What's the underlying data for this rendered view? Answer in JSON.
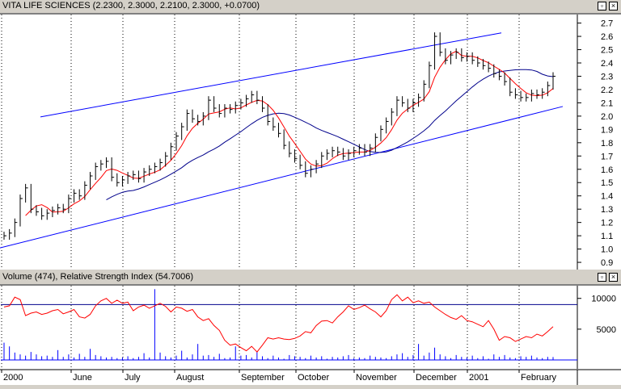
{
  "price_pane": {
    "title": "VITA LIFE SCIENCES (2.2300, 2.3000, 2.2100, 2.3000, +0.0700)",
    "controls": [
      "restore-icon",
      "close-icon"
    ]
  },
  "indicator_pane": {
    "title": "Volume (474), Relative Strength Index (54.7006)",
    "controls": [
      "restore-icon",
      "close-icon"
    ]
  },
  "x_axis": {
    "labels": [
      "2000",
      "June",
      "July",
      "August",
      "September",
      "October",
      "November",
      "December",
      "2001",
      "February"
    ]
  },
  "chart_data": [
    {
      "type": "line",
      "title": "VITA LIFE SCIENCES (2.2300, 2.3000, 2.2100, 2.3000, +0.0700)",
      "y_ticks": [
        0.9,
        1.0,
        1.1,
        1.2,
        1.3,
        1.4,
        1.5,
        1.6,
        1.7,
        1.8,
        1.9,
        2.0,
        2.1,
        2.2,
        2.3,
        2.4,
        2.5,
        2.6,
        2.7
      ],
      "ylim": [
        0.87,
        2.74
      ],
      "x_labels": [
        "2000",
        "June",
        "July",
        "August",
        "September",
        "October",
        "November",
        "December",
        "2001",
        "February"
      ],
      "grid": "vertical dashed at month starts",
      "last_bar": {
        "open": 2.23,
        "high": 2.3,
        "low": 2.21,
        "close": 2.3,
        "change": 0.07
      },
      "price_close": [
        1.1,
        1.12,
        1.2,
        1.38,
        1.46,
        1.3,
        1.28,
        1.25,
        1.27,
        1.29,
        1.31,
        1.3,
        1.38,
        1.42,
        1.4,
        1.48,
        1.55,
        1.62,
        1.64,
        1.66,
        1.54,
        1.5,
        1.52,
        1.55,
        1.56,
        1.53,
        1.58,
        1.6,
        1.62,
        1.65,
        1.7,
        1.77,
        1.85,
        1.92,
        2.02,
        1.98,
        1.96,
        2.0,
        2.12,
        2.06,
        2.02,
        2.06,
        2.05,
        2.08,
        2.1,
        2.13,
        2.16,
        2.12,
        2.06,
        1.96,
        1.92,
        1.87,
        1.78,
        1.72,
        1.68,
        1.63,
        1.57,
        1.6,
        1.64,
        1.7,
        1.72,
        1.74,
        1.73,
        1.7,
        1.72,
        1.74,
        1.76,
        1.73,
        1.76,
        1.84,
        1.9,
        1.96,
        2.03,
        2.12,
        2.1,
        2.06,
        2.1,
        2.14,
        2.24,
        2.38,
        2.6,
        2.48,
        2.42,
        2.46,
        2.48,
        2.44,
        2.45,
        2.42,
        2.4,
        2.38,
        2.36,
        2.32,
        2.3,
        2.26,
        2.18,
        2.16,
        2.14,
        2.14,
        2.17,
        2.16,
        2.18,
        2.23,
        2.3
      ],
      "channel_lines": [
        {
          "name": "upper",
          "points": [
            [
              0,
              1.94
            ],
            [
              100,
              2.73
            ]
          ]
        },
        {
          "name": "lower",
          "points": [
            [
              0,
              1.01
            ],
            [
              100,
              2.1
            ]
          ]
        }
      ],
      "series_colors": {
        "price": "#000000",
        "short_ma": "#ff0000",
        "long_ma": "#00008b",
        "channel": "#0000ff"
      }
    },
    {
      "type": "bar",
      "title": "Volume (474), Relative Strength Index (54.7006)",
      "y_ticks": [
        5000,
        10000
      ],
      "reference_line": 9000,
      "volume_last": 474,
      "rsi_last": 54.7006,
      "volume": [
        2800,
        2200,
        1200,
        900,
        700,
        1300,
        900,
        600,
        700,
        500,
        1600,
        500,
        900,
        400,
        1000,
        500,
        1800,
        800,
        600,
        400,
        500,
        300,
        400,
        600,
        300,
        500,
        1100,
        400,
        11500,
        1200,
        600,
        400,
        700,
        1500,
        400,
        900,
        2600,
        700,
        800,
        500,
        1000,
        300,
        400,
        2200,
        700,
        800,
        400,
        1300,
        600,
        300,
        700,
        400,
        200,
        800,
        600,
        500,
        300,
        700,
        400,
        600,
        200,
        500,
        400,
        600,
        800,
        300,
        400,
        300,
        700,
        500,
        400,
        300,
        600,
        900,
        1100,
        500,
        800,
        2600,
        700,
        1200,
        2000,
        900,
        600,
        300,
        800,
        500,
        400,
        700,
        300,
        600,
        200,
        900,
        500,
        800,
        400,
        300,
        600,
        500,
        700,
        400,
        300,
        500,
        474
      ],
      "rsi_scaled": [
        8600,
        8800,
        10200,
        9800,
        7200,
        7600,
        7800,
        7400,
        7600,
        8000,
        8200,
        7500,
        7800,
        8200,
        7000,
        6800,
        7400,
        8800,
        9600,
        10000,
        9200,
        9700,
        9200,
        9400,
        8000,
        8600,
        8900,
        8400,
        8800,
        9200,
        8700,
        7800,
        8600,
        8400,
        7900,
        8200,
        7000,
        6400,
        6700,
        5600,
        4800,
        3200,
        2400,
        2600,
        2000,
        1500,
        2200,
        1300,
        2400,
        3600,
        3400,
        3600,
        3400,
        3300,
        3500,
        3900,
        4600,
        4400,
        5600,
        6300,
        6400,
        6000,
        7000,
        7800,
        8800,
        8200,
        8500,
        8900,
        8300,
        7800,
        7000,
        8000,
        9800,
        10600,
        9600,
        10200,
        9300,
        9600,
        9200,
        9400,
        8600,
        8000,
        7400,
        6900,
        6600,
        7200,
        6400,
        6200,
        5800,
        5400,
        6400,
        5000,
        3200,
        3800,
        3600,
        3000,
        3400,
        3800,
        3600,
        4200,
        3900,
        4600,
        5400
      ],
      "series_colors": {
        "volume": "#0000ff",
        "rsi": "#ff0000",
        "reference": "#00008b"
      }
    }
  ]
}
